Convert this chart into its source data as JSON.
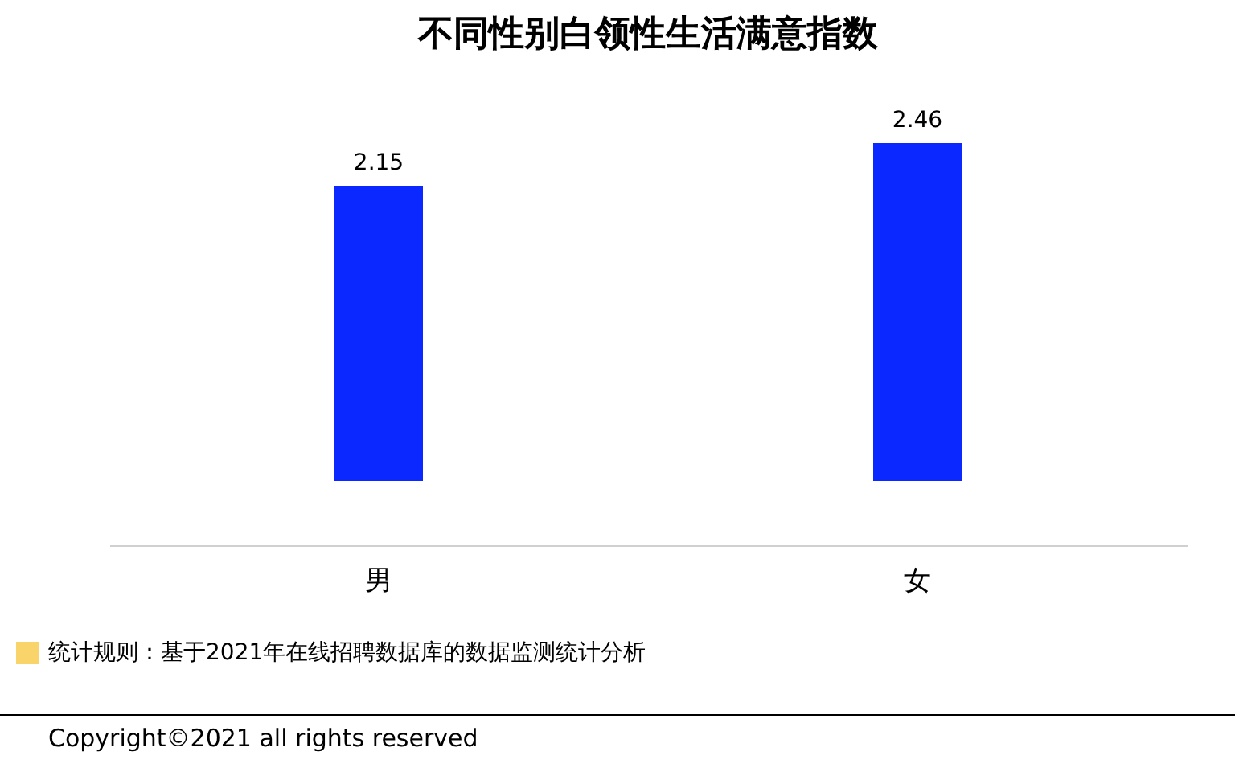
{
  "chart_data": {
    "type": "bar",
    "title": "不同性别白领性生活满意指数",
    "categories": [
      "男",
      "女"
    ],
    "values": [
      2.15,
      2.46
    ],
    "color": "#0a28ff",
    "data_labels": true,
    "annotations": [
      "统计规则：基于2021年在线招聘数据库的数据监测统计分析",
      "Copyright©2021 all rights reserved"
    ]
  }
}
